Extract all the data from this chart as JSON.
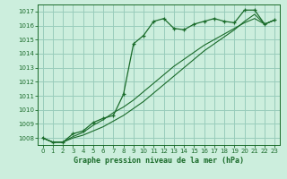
{
  "title": "Graphe pression niveau de la mer (hPa)",
  "bg_color": "#cceedd",
  "grid_color": "#99ccbb",
  "line_color": "#1a6b2a",
  "marker_color": "#1a6b2a",
  "ylim": [
    1007.5,
    1017.5
  ],
  "xlim": [
    -0.5,
    23.5
  ],
  "yticks": [
    1008,
    1009,
    1010,
    1011,
    1012,
    1013,
    1014,
    1015,
    1016,
    1017
  ],
  "xticks": [
    0,
    1,
    2,
    3,
    4,
    5,
    6,
    7,
    8,
    9,
    10,
    11,
    12,
    13,
    14,
    15,
    16,
    17,
    18,
    19,
    20,
    21,
    22,
    23
  ],
  "series1_x": [
    0,
    1,
    2,
    3,
    4,
    5,
    6,
    7,
    8,
    9,
    10,
    11,
    12,
    13,
    14,
    15,
    16,
    17,
    18,
    19,
    20,
    21,
    22,
    23
  ],
  "series1_y": [
    1008.0,
    1007.7,
    1007.7,
    1008.3,
    1008.5,
    1009.1,
    1009.4,
    1009.6,
    1011.1,
    1014.7,
    1015.3,
    1016.3,
    1016.5,
    1015.8,
    1015.7,
    1016.1,
    1016.3,
    1016.5,
    1016.3,
    1016.2,
    1017.1,
    1017.1,
    1016.1,
    1016.4
  ],
  "series2_x": [
    0,
    1,
    2,
    3,
    4,
    5,
    6,
    7,
    8,
    9,
    10,
    11,
    12,
    13,
    14,
    15,
    16,
    17,
    18,
    19,
    20,
    21,
    22,
    23
  ],
  "series2_y": [
    1008.0,
    1007.7,
    1007.7,
    1008.1,
    1008.4,
    1008.9,
    1009.3,
    1009.8,
    1010.2,
    1010.7,
    1011.3,
    1011.9,
    1012.5,
    1013.1,
    1013.6,
    1014.1,
    1014.6,
    1015.0,
    1015.4,
    1015.8,
    1016.2,
    1016.5,
    1016.1,
    1016.4
  ],
  "series3_x": [
    0,
    1,
    2,
    3,
    4,
    5,
    6,
    7,
    8,
    9,
    10,
    11,
    12,
    13,
    14,
    15,
    16,
    17,
    18,
    19,
    20,
    21,
    22,
    23
  ],
  "series3_y": [
    1008.0,
    1007.7,
    1007.7,
    1008.0,
    1008.2,
    1008.5,
    1008.8,
    1009.2,
    1009.6,
    1010.1,
    1010.6,
    1011.2,
    1011.8,
    1012.4,
    1013.0,
    1013.6,
    1014.2,
    1014.7,
    1015.2,
    1015.7,
    1016.3,
    1016.8,
    1016.1,
    1016.4
  ]
}
